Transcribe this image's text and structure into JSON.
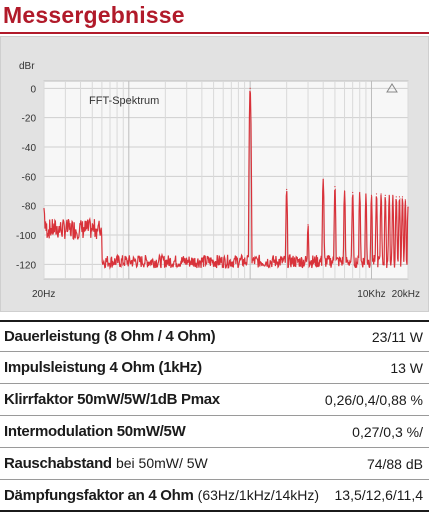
{
  "title": "Messergebnisse",
  "chart_data": {
    "type": "line",
    "title": "FFT-Spektrum",
    "ylabel": "dBr",
    "xlabel": "",
    "xscale": "log",
    "xlim": [
      20,
      20000
    ],
    "ylim": [
      -130,
      5
    ],
    "yticks": [
      0,
      -20,
      -40,
      -60,
      -80,
      -100,
      -120
    ],
    "ytick_labels": [
      "0",
      "-20",
      "-40",
      "-60",
      "-80",
      "-100",
      "-120"
    ],
    "xtick_labels": [
      {
        "x": 20,
        "label": "20Hz"
      },
      {
        "x": 10000,
        "label": "10Khz"
      },
      {
        "x": 20000,
        "label": "20kHz"
      }
    ],
    "grid": true,
    "color": "#d8323a",
    "noise_floor": -118,
    "series": [
      {
        "peaks_hz": [
          20,
          1000,
          2000,
          3000,
          4000,
          5000,
          6000,
          7000,
          8000,
          9000,
          10000,
          11000,
          12000,
          13000,
          14000,
          15000,
          16000,
          17000,
          18000,
          19000,
          20000
        ],
        "peaks_db": [
          -82,
          0,
          -69,
          -93,
          -62,
          -67,
          -70,
          -71,
          -71,
          -72,
          -73,
          -72,
          -72,
          -73,
          -73,
          -73,
          -74,
          -74,
          -74,
          -76,
          -81
        ]
      }
    ]
  },
  "results": [
    {
      "label": "Dauerleistung (8 Ohm / 4 Ohm)",
      "note": "",
      "value": "23/11 W"
    },
    {
      "label": "Impulsleistung 4 Ohm (1kHz)",
      "note": "",
      "value": "13 W"
    },
    {
      "label": "Klirrfaktor 50mW/5W/1dB Pmax",
      "note": "",
      "value": "0,26/0,4/0,88 %"
    },
    {
      "label": "Intermodulation 50mW/5W",
      "note": "",
      "value": "0,27/0,3 %/"
    },
    {
      "label": "Rauschabstand",
      "note": "bei 50mW/ 5W",
      "value": "74/88 dB"
    },
    {
      "label": "Dämpfungsfaktor an 4 Ohm",
      "note": "(63Hz/1kHz/14kHz)",
      "value": "13,5/12,6/11,4"
    }
  ]
}
